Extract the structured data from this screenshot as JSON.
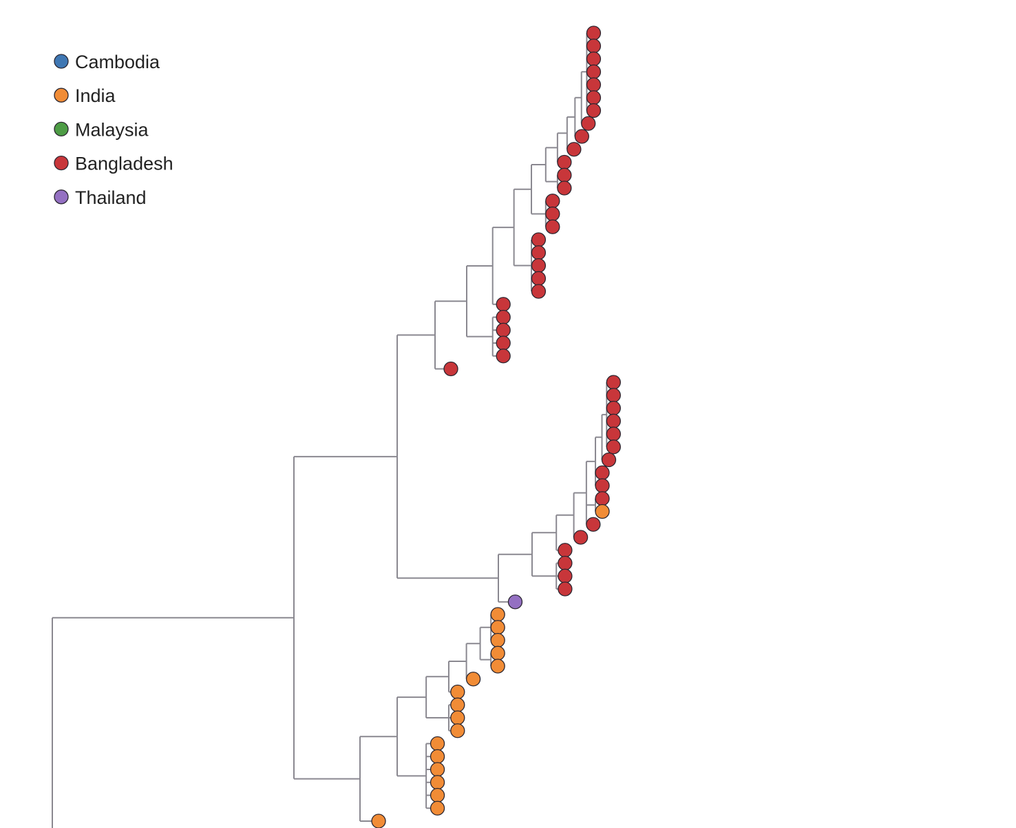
{
  "legend": {
    "items": [
      {
        "label": "Cambodia",
        "color": "#3f77b3"
      },
      {
        "label": "India",
        "color": "#f18c36"
      },
      {
        "label": "Malaysia",
        "color": "#4d9c45"
      },
      {
        "label": "Bangladesh",
        "color": "#c8363a"
      },
      {
        "label": "Thailand",
        "color": "#9470c2"
      }
    ]
  },
  "tree": {
    "tip_color_key": {
      "B": "Bangladesh",
      "I": "India",
      "T": "Thailand"
    },
    "structure": {
      "c": [
        {
          "c": [
            {
              "c": [
                {
                  "c": [
                    {
                      "c": [
                        {
                          "c": [
                            {
                              "c": [
                                {
                                  "c": [
                                    {
                                      "c": [
                                        {
                                          "c": [
                                            {
                                              "c": [
                                                {
                                                  "c": [
                                                    {
                                                      "t": "B"
                                                    },
                                                    {
                                                      "t": "B"
                                                    },
                                                    {
                                                      "t": "B"
                                                    },
                                                    {
                                                      "t": "B"
                                                    },
                                                    {
                                                      "t": "B"
                                                    },
                                                    {
                                                      "t": "B"
                                                    },
                                                    {
                                                      "t": "B"
                                                    }
                                                  ]
                                                },
                                                {
                                                  "t": "B"
                                                }
                                              ]
                                            },
                                            {
                                              "t": "B"
                                            }
                                          ]
                                        },
                                        {
                                          "t": "B"
                                        }
                                      ]
                                    },
                                    {
                                      "t": "B"
                                    }
                                  ]
                                },
                                {
                                  "c": [
                                    {
                                      "t": "B"
                                    },
                                    {
                                      "t": "B"
                                    }
                                  ]
                                }
                              ]
                            },
                            {
                              "c": [
                                {
                                  "t": "B"
                                },
                                {
                                  "t": "B"
                                },
                                {
                                  "t": "B"
                                }
                              ]
                            }
                          ]
                        },
                        {
                          "c": [
                            {
                              "t": "B"
                            },
                            {
                              "t": "B"
                            },
                            {
                              "t": "B"
                            },
                            {
                              "t": "B"
                            },
                            {
                              "t": "B"
                            }
                          ]
                        }
                      ]
                    },
                    {
                      "t": "B"
                    }
                  ]
                },
                {
                  "c": [
                    {
                      "t": "B"
                    },
                    {
                      "t": "B"
                    },
                    {
                      "t": "B"
                    },
                    {
                      "t": "B"
                    }
                  ]
                }
              ]
            },
            {
              "t": "B"
            }
          ]
        },
        {
          "c": [
            {
              "c": [
                {
                  "c": [
                    {
                      "c": [
                        {
                          "c": [
                            {
                              "c": [
                                {
                                  "c": [
                                    {
                                      "c": [
                                        {
                                          "c": [
                                            {
                                              "t": "B"
                                            },
                                            {
                                              "t": "B"
                                            },
                                            {
                                              "t": "B"
                                            },
                                            {
                                              "t": "B"
                                            },
                                            {
                                              "t": "B"
                                            },
                                            {
                                              "t": "B"
                                            }
                                          ]
                                        },
                                        {
                                          "t": "B"
                                        }
                                      ]
                                    },
                                    {
                                      "t": "B"
                                    },
                                    {
                                      "t": "B"
                                    }
                                  ]
                                },
                                {
                                  "c": [
                                    {
                                      "t": "B"
                                    },
                                    {
                                      "t": "I"
                                    }
                                  ]
                                },
                                {
                                  "t": "B"
                                }
                              ]
                            },
                            {
                              "t": "B"
                            }
                          ]
                        },
                        {
                          "t": "B"
                        }
                      ]
                    },
                    {
                      "c": [
                        {
                          "t": "B"
                        },
                        {
                          "t": "B"
                        },
                        {
                          "t": "B"
                        }
                      ]
                    }
                  ]
                },
                {
                  "t": "T"
                }
              ]
            }
          ]
        }
      ]
    }
  },
  "india_clade": {
    "structure": {
      "c": [
        {
          "c": [
            {
              "c": [
                {
                  "c": [
                    {
                      "c": [
                        {
                          "c": [
                            {
                              "c": [
                                {
                                  "t": "I"
                                },
                                {
                                  "t": "I"
                                },
                                {
                                  "t": "I"
                                }
                              ]
                            },
                            {
                              "c": [
                                {
                                  "t": "I"
                                },
                                {
                                  "t": "I"
                                }
                              ]
                            }
                          ]
                        },
                        {
                          "t": "I"
                        }
                      ]
                    },
                    {
                      "t": "I"
                    }
                  ]
                },
                {
                  "c": [
                    {
                      "t": "I"
                    },
                    {
                      "t": "I"
                    },
                    {
                      "t": "I"
                    }
                  ]
                }
              ]
            },
            {
              "c": [
                {
                  "t": "I"
                },
                {
                  "t": "I"
                },
                {
                  "t": "I"
                },
                {
                  "t": "I"
                },
                {
                  "t": "I"
                },
                {
                  "t": "I"
                }
              ]
            }
          ]
        },
        {
          "t": "I"
        }
      ]
    }
  }
}
